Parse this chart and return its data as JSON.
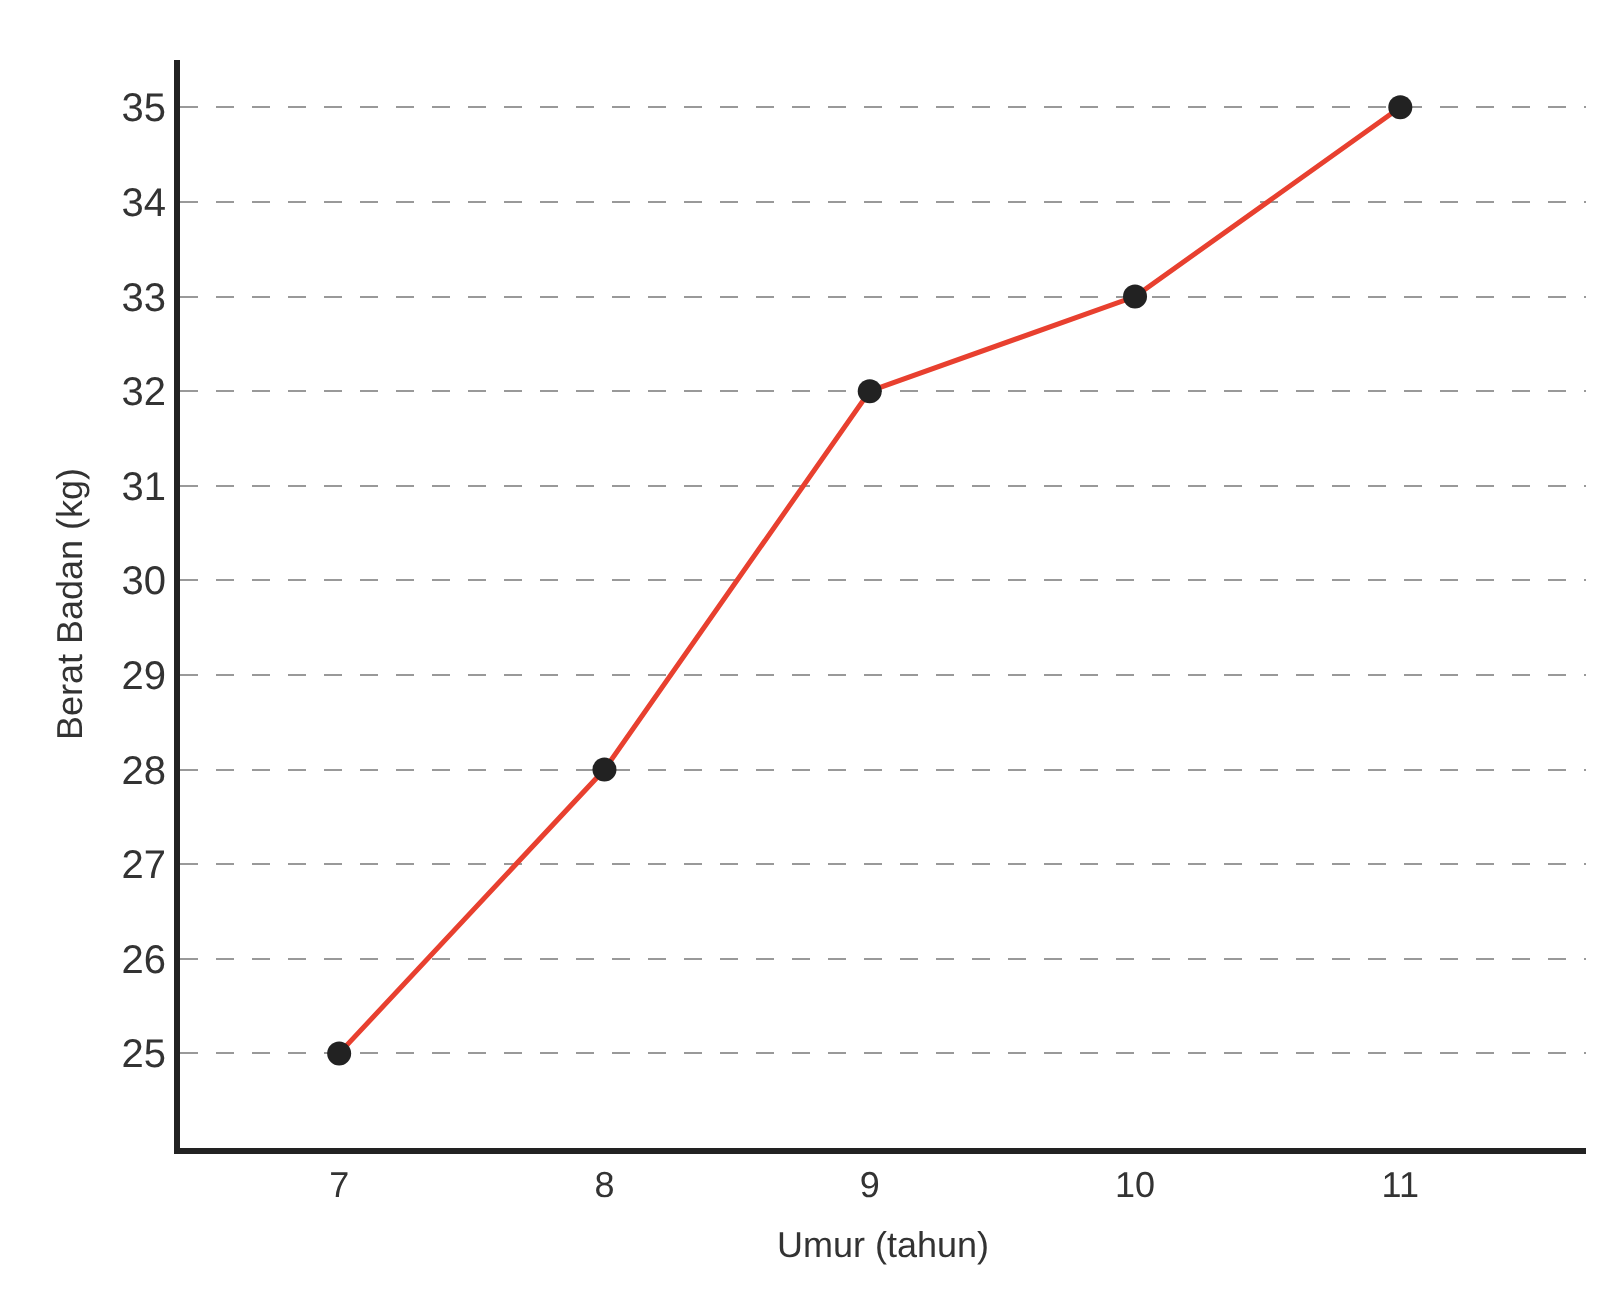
{
  "chart_data": {
    "type": "line",
    "xlabel": "Umur (tahun)",
    "ylabel": "Berat Badan (kg)",
    "x": [
      7,
      8,
      9,
      10,
      11
    ],
    "series": [
      {
        "color": "#e8402f",
        "values": [
          25,
          28,
          32,
          33,
          35
        ]
      }
    ],
    "xlim": [
      6.4,
      11.7
    ],
    "xticks": [
      7,
      8,
      9,
      10,
      11
    ],
    "ylim": [
      24,
      35.5
    ],
    "yticks": [
      25,
      26,
      27,
      28,
      29,
      30,
      31,
      32,
      33,
      34,
      35
    ],
    "grid": "y",
    "legend": false,
    "marker": "circle",
    "line_style": "solid"
  }
}
